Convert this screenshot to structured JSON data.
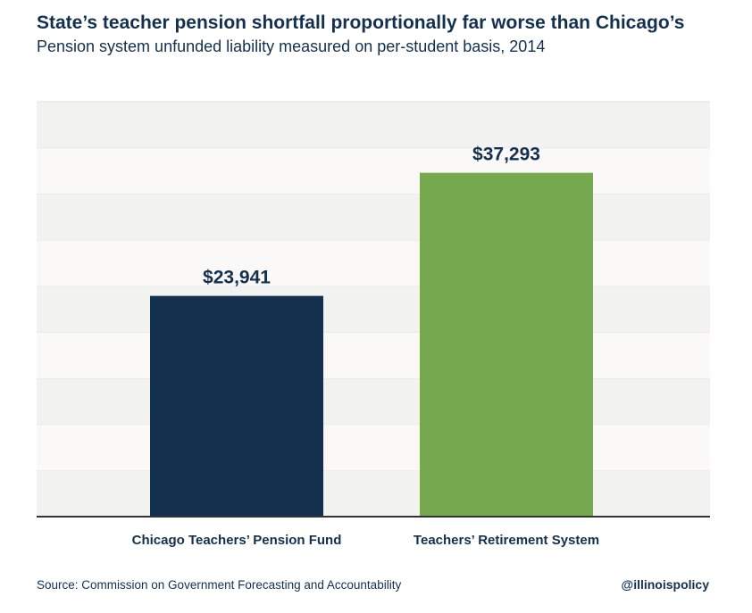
{
  "chart_data": {
    "type": "bar",
    "title": "State’s teacher pension shortfall proportionally far worse than Chicago’s",
    "subtitle": "Pension system unfunded liability measured on per-student basis, 2014",
    "categories": [
      "Chicago Teachers’ Pension Fund",
      "Teachers’ Retirement System"
    ],
    "values": [
      23941,
      37293
    ],
    "value_labels": [
      "$23,941",
      "$37,293"
    ],
    "bar_colors": [
      "#14304f",
      "#76a84f"
    ],
    "ylim": [
      0,
      45000
    ],
    "grid": true,
    "legend": "none"
  },
  "source": "Source: Commission on Government Forecasting and Accountability",
  "handle": "@illinoispolicy",
  "colors": {
    "text": "#14304f",
    "band_dark": "#f2f2f0",
    "band_light": "#faf9f8",
    "axis": "#333333"
  }
}
